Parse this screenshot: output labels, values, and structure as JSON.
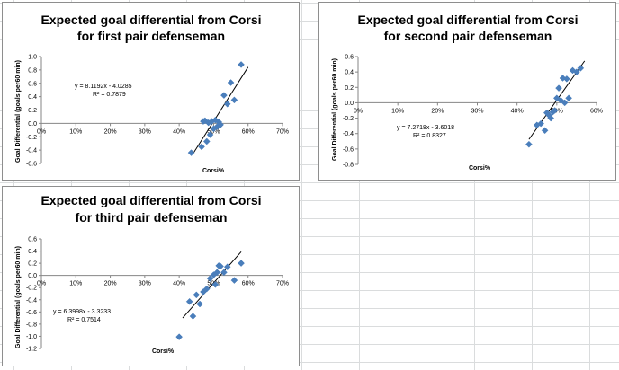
{
  "colors": {
    "marker": "#4a7ebb",
    "trendline": "#000000",
    "axis": "#868686"
  },
  "chart_data": [
    {
      "type": "scatter",
      "title_line1": "Expected goal differential from Corsi",
      "title_line2": "for first pair defenseman",
      "xlabel": "Corsi%",
      "ylabel": "Goal Differential (goals per60 min)",
      "xlim": [
        0,
        0.7
      ],
      "ylim": [
        -0.6,
        1.0
      ],
      "ystep": 0.2,
      "xtick_labels": [
        "0%",
        "10%",
        "20%",
        "30%",
        "40%",
        "50%",
        "60%",
        "70%"
      ],
      "ytick_labels": [
        "-0.6",
        "-0.4",
        "-0.2",
        "0.0",
        "0.2",
        "0.4",
        "0.6",
        "0.8",
        "1.0"
      ],
      "x": [
        0.435,
        0.465,
        0.47,
        0.475,
        0.48,
        0.485,
        0.49,
        0.495,
        0.5,
        0.505,
        0.51,
        0.515,
        0.52,
        0.53,
        0.54,
        0.55,
        0.56,
        0.58
      ],
      "y": [
        -0.44,
        -0.35,
        0.03,
        0.04,
        -0.27,
        0.01,
        -0.17,
        0.03,
        -0.08,
        0.05,
        -0.05,
        0.02,
        -0.02,
        0.42,
        0.29,
        0.61,
        0.35,
        0.88
      ],
      "trendline": {
        "slope": 8.1192,
        "intercept": -4.0285,
        "x_range": [
          0.44,
          0.6
        ]
      },
      "equation_text": "y = 8.1192x - 4.0285",
      "r2_text": "R² = 0.7879"
    },
    {
      "type": "scatter",
      "title_line1": "Expected goal differential from Corsi",
      "title_line2": "for second pair defenseman",
      "xlabel": "Corsi%",
      "ylabel": "Goal Differential (goals per60 min)",
      "xlim": [
        0,
        0.6
      ],
      "ylim": [
        -0.8,
        0.6
      ],
      "ystep": 0.2,
      "xtick_labels": [
        "0%",
        "10%",
        "20%",
        "30%",
        "40%",
        "50%",
        "60%"
      ],
      "ytick_labels": [
        "-0.8",
        "-0.6",
        "-0.4",
        "-0.2",
        "0.0",
        "0.2",
        "0.4",
        "0.6"
      ],
      "x": [
        0.43,
        0.45,
        0.46,
        0.47,
        0.475,
        0.48,
        0.485,
        0.49,
        0.495,
        0.5,
        0.505,
        0.51,
        0.515,
        0.52,
        0.525,
        0.53,
        0.54,
        0.55,
        0.56
      ],
      "y": [
        -0.54,
        -0.29,
        -0.27,
        -0.36,
        -0.13,
        -0.16,
        -0.2,
        -0.12,
        -0.1,
        0.06,
        0.19,
        0.03,
        0.32,
        0.0,
        0.31,
        0.06,
        0.42,
        0.4,
        0.45
      ],
      "trendline": {
        "slope": 7.2718,
        "intercept": -3.6018,
        "x_range": [
          0.43,
          0.57
        ]
      },
      "equation_text": "y = 7.2718x - 3.6018",
      "r2_text": "R² = 0.8327"
    },
    {
      "type": "scatter",
      "title_line1": "Expected goal differential from Corsi",
      "title_line2": "for third pair defenseman",
      "xlabel": "Corsi%",
      "ylabel": "Goal Differential (goals per60 min)",
      "xlim": [
        0,
        0.7
      ],
      "ylim": [
        -1.2,
        0.6
      ],
      "ystep": 0.2,
      "xtick_labels": [
        "0%",
        "10%",
        "20%",
        "30%",
        "40%",
        "50%",
        "60%",
        "70%"
      ],
      "ytick_labels": [
        "-1.2",
        "-1.0",
        "-0.8",
        "-0.6",
        "-0.4",
        "-0.2",
        "0.0",
        "0.2",
        "0.4",
        "0.6"
      ],
      "x": [
        0.4,
        0.43,
        0.44,
        0.45,
        0.46,
        0.47,
        0.48,
        0.49,
        0.5,
        0.505,
        0.51,
        0.515,
        0.52,
        0.53,
        0.54,
        0.56,
        0.58
      ],
      "y": [
        -1.01,
        -0.43,
        -0.67,
        -0.32,
        -0.47,
        -0.27,
        -0.22,
        -0.05,
        0.01,
        -0.15,
        0.05,
        0.16,
        0.15,
        0.05,
        0.14,
        -0.08,
        0.2
      ],
      "trendline": {
        "slope": 6.3998,
        "intercept": -3.3233,
        "x_range": [
          0.41,
          0.58
        ]
      },
      "equation_text": "y = 6.3998x - 3.3233",
      "r2_text": "R² = 0.7514"
    }
  ]
}
